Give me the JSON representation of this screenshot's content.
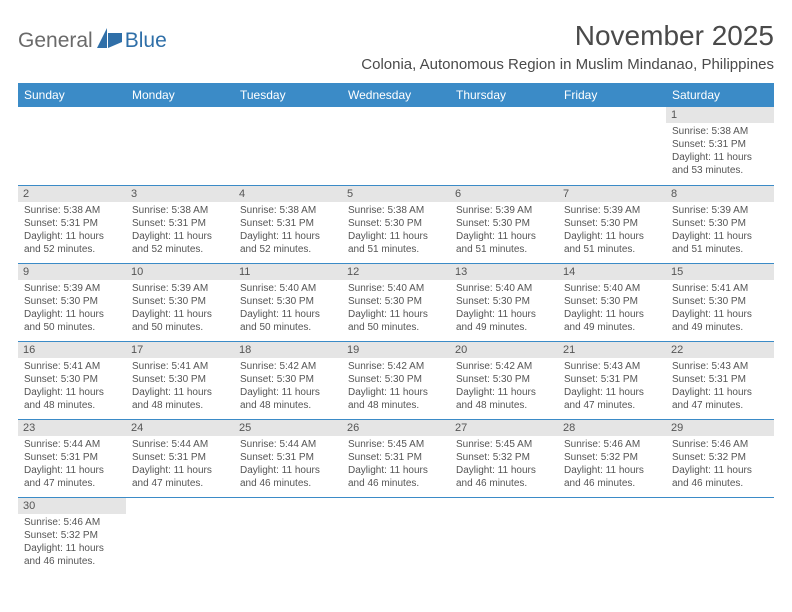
{
  "logo": {
    "general": "General",
    "blue": "Blue"
  },
  "title": "November 2025",
  "location": "Colonia, Autonomous Region in Muslim Mindanao, Philippines",
  "colors": {
    "header_bg": "#3b8bc7",
    "header_text": "#ffffff",
    "daynum_bg": "#e5e5e5",
    "text": "#555555",
    "rule": "#3b8bc7",
    "logo_gray": "#6a6a6a",
    "logo_blue": "#2f6fa8"
  },
  "dow": [
    "Sunday",
    "Monday",
    "Tuesday",
    "Wednesday",
    "Thursday",
    "Friday",
    "Saturday"
  ],
  "weeks": [
    [
      null,
      null,
      null,
      null,
      null,
      null,
      {
        "n": "1",
        "sr": "5:38 AM",
        "ss": "5:31 PM",
        "dh": "11",
        "dm": "53"
      }
    ],
    [
      {
        "n": "2",
        "sr": "5:38 AM",
        "ss": "5:31 PM",
        "dh": "11",
        "dm": "52"
      },
      {
        "n": "3",
        "sr": "5:38 AM",
        "ss": "5:31 PM",
        "dh": "11",
        "dm": "52"
      },
      {
        "n": "4",
        "sr": "5:38 AM",
        "ss": "5:31 PM",
        "dh": "11",
        "dm": "52"
      },
      {
        "n": "5",
        "sr": "5:38 AM",
        "ss": "5:30 PM",
        "dh": "11",
        "dm": "51"
      },
      {
        "n": "6",
        "sr": "5:39 AM",
        "ss": "5:30 PM",
        "dh": "11",
        "dm": "51"
      },
      {
        "n": "7",
        "sr": "5:39 AM",
        "ss": "5:30 PM",
        "dh": "11",
        "dm": "51"
      },
      {
        "n": "8",
        "sr": "5:39 AM",
        "ss": "5:30 PM",
        "dh": "11",
        "dm": "51"
      }
    ],
    [
      {
        "n": "9",
        "sr": "5:39 AM",
        "ss": "5:30 PM",
        "dh": "11",
        "dm": "50"
      },
      {
        "n": "10",
        "sr": "5:39 AM",
        "ss": "5:30 PM",
        "dh": "11",
        "dm": "50"
      },
      {
        "n": "11",
        "sr": "5:40 AM",
        "ss": "5:30 PM",
        "dh": "11",
        "dm": "50"
      },
      {
        "n": "12",
        "sr": "5:40 AM",
        "ss": "5:30 PM",
        "dh": "11",
        "dm": "50"
      },
      {
        "n": "13",
        "sr": "5:40 AM",
        "ss": "5:30 PM",
        "dh": "11",
        "dm": "49"
      },
      {
        "n": "14",
        "sr": "5:40 AM",
        "ss": "5:30 PM",
        "dh": "11",
        "dm": "49"
      },
      {
        "n": "15",
        "sr": "5:41 AM",
        "ss": "5:30 PM",
        "dh": "11",
        "dm": "49"
      }
    ],
    [
      {
        "n": "16",
        "sr": "5:41 AM",
        "ss": "5:30 PM",
        "dh": "11",
        "dm": "48"
      },
      {
        "n": "17",
        "sr": "5:41 AM",
        "ss": "5:30 PM",
        "dh": "11",
        "dm": "48"
      },
      {
        "n": "18",
        "sr": "5:42 AM",
        "ss": "5:30 PM",
        "dh": "11",
        "dm": "48"
      },
      {
        "n": "19",
        "sr": "5:42 AM",
        "ss": "5:30 PM",
        "dh": "11",
        "dm": "48"
      },
      {
        "n": "20",
        "sr": "5:42 AM",
        "ss": "5:30 PM",
        "dh": "11",
        "dm": "48"
      },
      {
        "n": "21",
        "sr": "5:43 AM",
        "ss": "5:31 PM",
        "dh": "11",
        "dm": "47"
      },
      {
        "n": "22",
        "sr": "5:43 AM",
        "ss": "5:31 PM",
        "dh": "11",
        "dm": "47"
      }
    ],
    [
      {
        "n": "23",
        "sr": "5:44 AM",
        "ss": "5:31 PM",
        "dh": "11",
        "dm": "47"
      },
      {
        "n": "24",
        "sr": "5:44 AM",
        "ss": "5:31 PM",
        "dh": "11",
        "dm": "47"
      },
      {
        "n": "25",
        "sr": "5:44 AM",
        "ss": "5:31 PM",
        "dh": "11",
        "dm": "46"
      },
      {
        "n": "26",
        "sr": "5:45 AM",
        "ss": "5:31 PM",
        "dh": "11",
        "dm": "46"
      },
      {
        "n": "27",
        "sr": "5:45 AM",
        "ss": "5:32 PM",
        "dh": "11",
        "dm": "46"
      },
      {
        "n": "28",
        "sr": "5:46 AM",
        "ss": "5:32 PM",
        "dh": "11",
        "dm": "46"
      },
      {
        "n": "29",
        "sr": "5:46 AM",
        "ss": "5:32 PM",
        "dh": "11",
        "dm": "46"
      }
    ],
    [
      {
        "n": "30",
        "sr": "5:46 AM",
        "ss": "5:32 PM",
        "dh": "11",
        "dm": "46"
      },
      null,
      null,
      null,
      null,
      null,
      null
    ]
  ],
  "labels": {
    "sunrise": "Sunrise: ",
    "sunset": "Sunset: ",
    "daylight_pre": "Daylight: ",
    "hours_and": " hours and ",
    "minutes": " minutes."
  }
}
